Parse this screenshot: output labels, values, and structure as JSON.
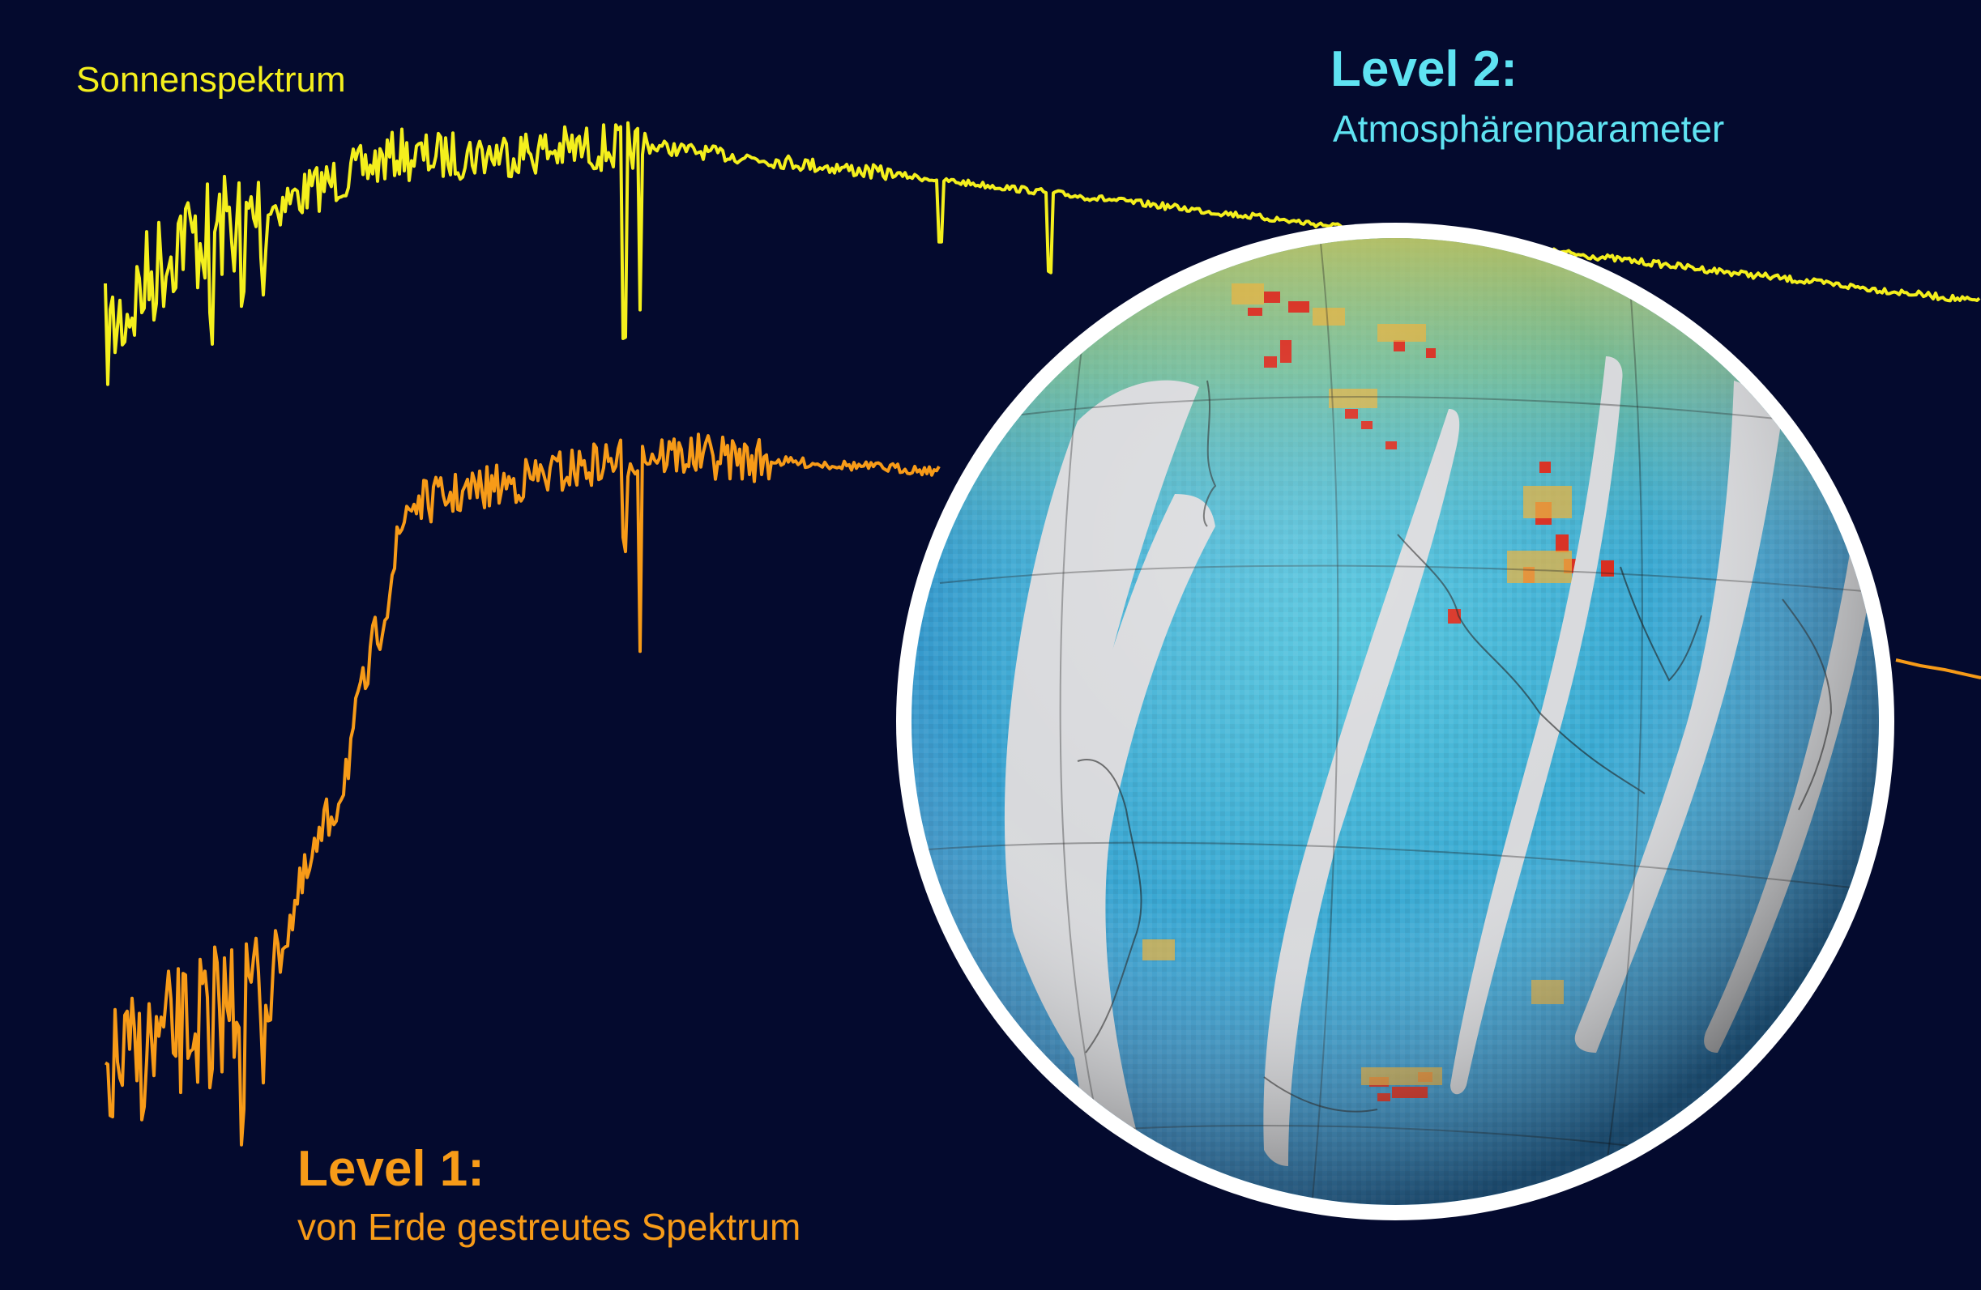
{
  "colors": {
    "background": "#040a2e",
    "solar_spectrum": "#f4ef1d",
    "earth_spectrum": "#f79b18",
    "level2": "#5fe3f2",
    "globe_ring": "#ffffff",
    "globe_ocean_low": "#3b86c8",
    "globe_ocean_mid": "#3fb3d6",
    "globe_high": "#d72a1c",
    "globe_gap": "#d8d9dc"
  },
  "labels": {
    "solar_spectrum": "Sonnenspektrum",
    "level2_title": "Level 2:",
    "level2_subtitle": "Atmosphärenparameter",
    "level1_title": "Level 1:",
    "level1_subtitle": "von Erde gestreutes Spektrum"
  },
  "icons": {
    "globe": "earth-globe-icon"
  }
}
